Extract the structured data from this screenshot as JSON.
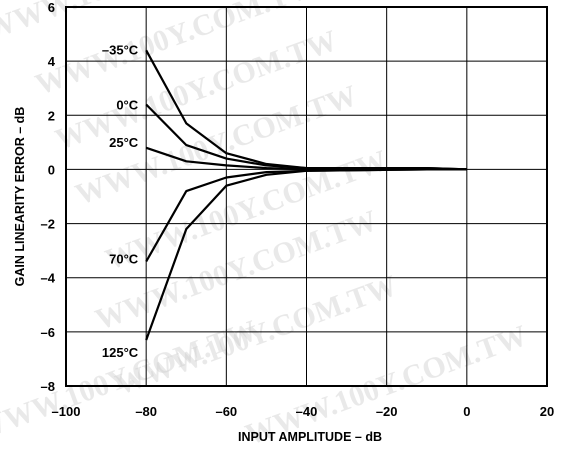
{
  "chart_data": {
    "type": "line",
    "title": "",
    "xlabel": "INPUT AMPLITUDE – dB",
    "ylabel": "GAIN LINEARITY ERROR – dB",
    "xlim": [
      -100,
      20
    ],
    "ylim": [
      -8,
      6
    ],
    "x_ticks": [
      -100,
      -80,
      -60,
      -40,
      -20,
      0,
      20
    ],
    "y_ticks": [
      6,
      4,
      2,
      0,
      -2,
      -4,
      -6,
      -8
    ],
    "x_tick_labels": [
      "–100",
      "–80",
      "–60",
      "–40",
      "–20",
      "0",
      "20"
    ],
    "y_tick_labels": [
      "6",
      "4",
      "2",
      "0",
      "–2",
      "–4",
      "–6",
      "–8"
    ],
    "grid": true,
    "legend": "inline labels",
    "watermark": "WWW.100Y.COM.TW",
    "series": [
      {
        "name": "–35°C",
        "x": [
          -80,
          -70,
          -60,
          -50,
          -40,
          -10,
          0
        ],
        "y": [
          4.4,
          1.7,
          0.6,
          0.2,
          0.05,
          0.05,
          0.0
        ]
      },
      {
        "name": "0°C",
        "x": [
          -80,
          -70,
          -60,
          -50,
          -40,
          -10,
          0
        ],
        "y": [
          2.4,
          0.9,
          0.4,
          0.15,
          0.05,
          0.05,
          0.0
        ]
      },
      {
        "name": "25°C",
        "x": [
          -80,
          -70,
          -60,
          -50,
          -40,
          -10,
          0
        ],
        "y": [
          0.8,
          0.3,
          0.15,
          0.05,
          0.0,
          0.0,
          0.0
        ]
      },
      {
        "name": "70°C",
        "x": [
          -80,
          -70,
          -60,
          -50,
          -40,
          -10,
          0
        ],
        "y": [
          -3.4,
          -0.8,
          -0.3,
          -0.1,
          -0.05,
          0.0,
          0.0
        ]
      },
      {
        "name": "125°C",
        "x": [
          -80,
          -70,
          -60,
          -50,
          -40,
          -10,
          0
        ],
        "y": [
          -6.3,
          -2.2,
          -0.6,
          -0.2,
          -0.05,
          0.0,
          0.0
        ]
      }
    ]
  }
}
